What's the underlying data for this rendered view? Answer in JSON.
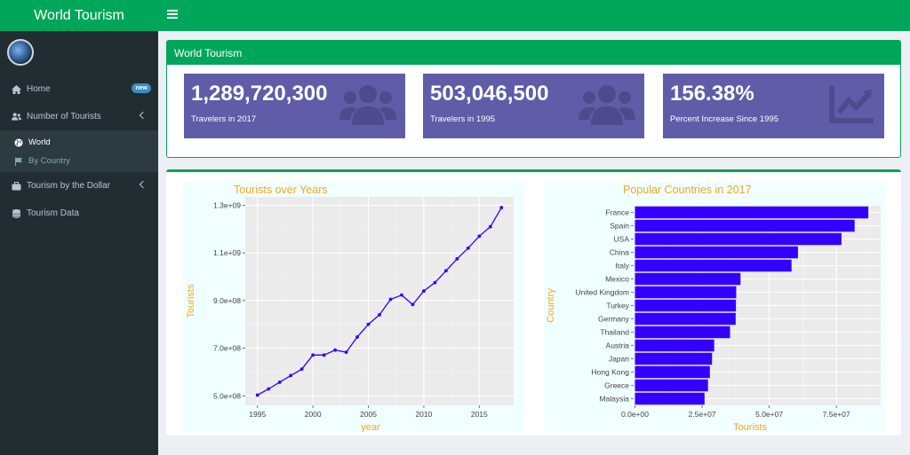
{
  "header": {
    "app_title": "World Tourism"
  },
  "sidebar": {
    "items": [
      {
        "label": "Home",
        "badge": "new",
        "icon": "home-icon"
      },
      {
        "label": "Number of Tourists",
        "icon": "users-icon",
        "subitems": [
          {
            "label": "World",
            "icon": "globe-icon"
          },
          {
            "label": "By Country",
            "icon": "flag-icon"
          }
        ]
      },
      {
        "label": "Tourism by the Dollar",
        "icon": "suitcase-icon"
      },
      {
        "label": "Tourism Data",
        "icon": "database-icon"
      }
    ]
  },
  "main": {
    "box_title": "World Tourism",
    "value_boxes": [
      {
        "value": "1,289,720,300",
        "label": "Travelers in 2017",
        "icon": "users-icon"
      },
      {
        "value": "503,046,500",
        "label": "Travelers in 1995",
        "icon": "users-icon"
      },
      {
        "value": "156.38%",
        "label": "Percent Increase Since 1995",
        "icon": "chart-line-icon"
      }
    ]
  },
  "colors": {
    "accent": "#00a65a",
    "value_box": "#605ca8",
    "plot_series": "#3300ff",
    "plot_title": "#f5a623"
  },
  "chart_data": [
    {
      "type": "line",
      "title": "Tourists over Years",
      "xlabel": "year",
      "ylabel": "Tourists",
      "x": [
        1995,
        1996,
        1997,
        1998,
        1999,
        2000,
        2001,
        2002,
        2003,
        2004,
        2005,
        2006,
        2007,
        2008,
        2009,
        2010,
        2011,
        2012,
        2013,
        2014,
        2015,
        2016,
        2017
      ],
      "y": [
        503000000,
        529000000,
        557000000,
        585000000,
        612000000,
        671000000,
        671000000,
        692000000,
        683000000,
        747000000,
        800000000,
        840000000,
        905000000,
        923000000,
        883000000,
        940000000,
        975000000,
        1025000000,
        1075000000,
        1120000000,
        1170000000,
        1210000000,
        1290000000
      ],
      "xticks": [
        "1995",
        "2000",
        "2005",
        "2010",
        "2015"
      ],
      "xtick_values": [
        1995,
        2000,
        2005,
        2010,
        2015
      ],
      "yticks": [
        "5.0e+08",
        "7.0e+08",
        "9.0e+08",
        "1.1e+09",
        "1.3e+09"
      ],
      "ytick_values": [
        500000000,
        700000000,
        900000000,
        1100000000,
        1300000000
      ],
      "xlim": [
        1993.9,
        2018.1
      ],
      "ylim": [
        460000000,
        1335000000
      ],
      "grid": true
    },
    {
      "type": "bar",
      "orientation": "horizontal",
      "title": "Popular Countries in 2017",
      "xlabel": "Tourists",
      "ylabel": "Country",
      "categories": [
        "France",
        "Spain",
        "USA",
        "China",
        "Italy",
        "Mexico",
        "United Kingdom",
        "Turkey",
        "Germany",
        "Thailand",
        "Austria",
        "Japan",
        "Hong Kong",
        "Greece",
        "Malaysia"
      ],
      "values": [
        86900000,
        81800000,
        76900000,
        60700000,
        58300000,
        39300000,
        37700000,
        37600000,
        37500000,
        35400000,
        29500000,
        28700000,
        27900000,
        27200000,
        25900000
      ],
      "xticks": [
        "0.0e+00",
        "2.5e+07",
        "5.0e+07",
        "7.5e+07"
      ],
      "xtick_values": [
        0,
        25000000,
        50000000,
        75000000
      ],
      "xlim": [
        -500000,
        91500000
      ],
      "grid": true
    }
  ]
}
